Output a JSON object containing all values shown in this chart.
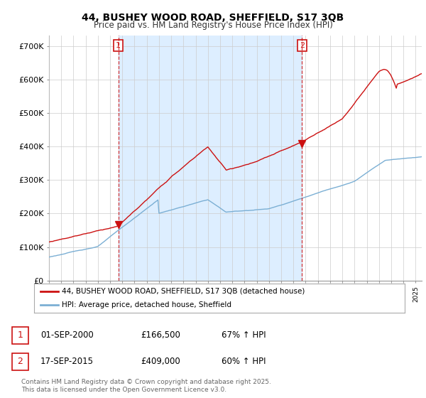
{
  "title_line1": "44, BUSHEY WOOD ROAD, SHEFFIELD, S17 3QB",
  "title_line2": "Price paid vs. HM Land Registry's House Price Index (HPI)",
  "yticks": [
    0,
    100000,
    200000,
    300000,
    400000,
    500000,
    600000,
    700000
  ],
  "ytick_labels": [
    "£0",
    "£100K",
    "£200K",
    "£300K",
    "£400K",
    "£500K",
    "£600K",
    "£700K"
  ],
  "xlim_start": 1995.0,
  "xlim_end": 2025.5,
  "ylim": [
    0,
    730000
  ],
  "hpi_color": "#7bafd4",
  "price_color": "#cc1111",
  "marker1_year": 2000.67,
  "marker1_price": 166500,
  "marker2_year": 2015.71,
  "marker2_price": 409000,
  "vline1_year": 2000.67,
  "vline2_year": 2015.71,
  "shade_color": "#ddeeff",
  "legend_label1": "44, BUSHEY WOOD ROAD, SHEFFIELD, S17 3QB (detached house)",
  "legend_label2": "HPI: Average price, detached house, Sheffield",
  "table_row1": [
    "1",
    "01-SEP-2000",
    "£166,500",
    "67% ↑ HPI"
  ],
  "table_row2": [
    "2",
    "17-SEP-2015",
    "£409,000",
    "60% ↑ HPI"
  ],
  "footnote": "Contains HM Land Registry data © Crown copyright and database right 2025.\nThis data is licensed under the Open Government Licence v3.0.",
  "background_color": "#ffffff",
  "grid_color": "#cccccc"
}
